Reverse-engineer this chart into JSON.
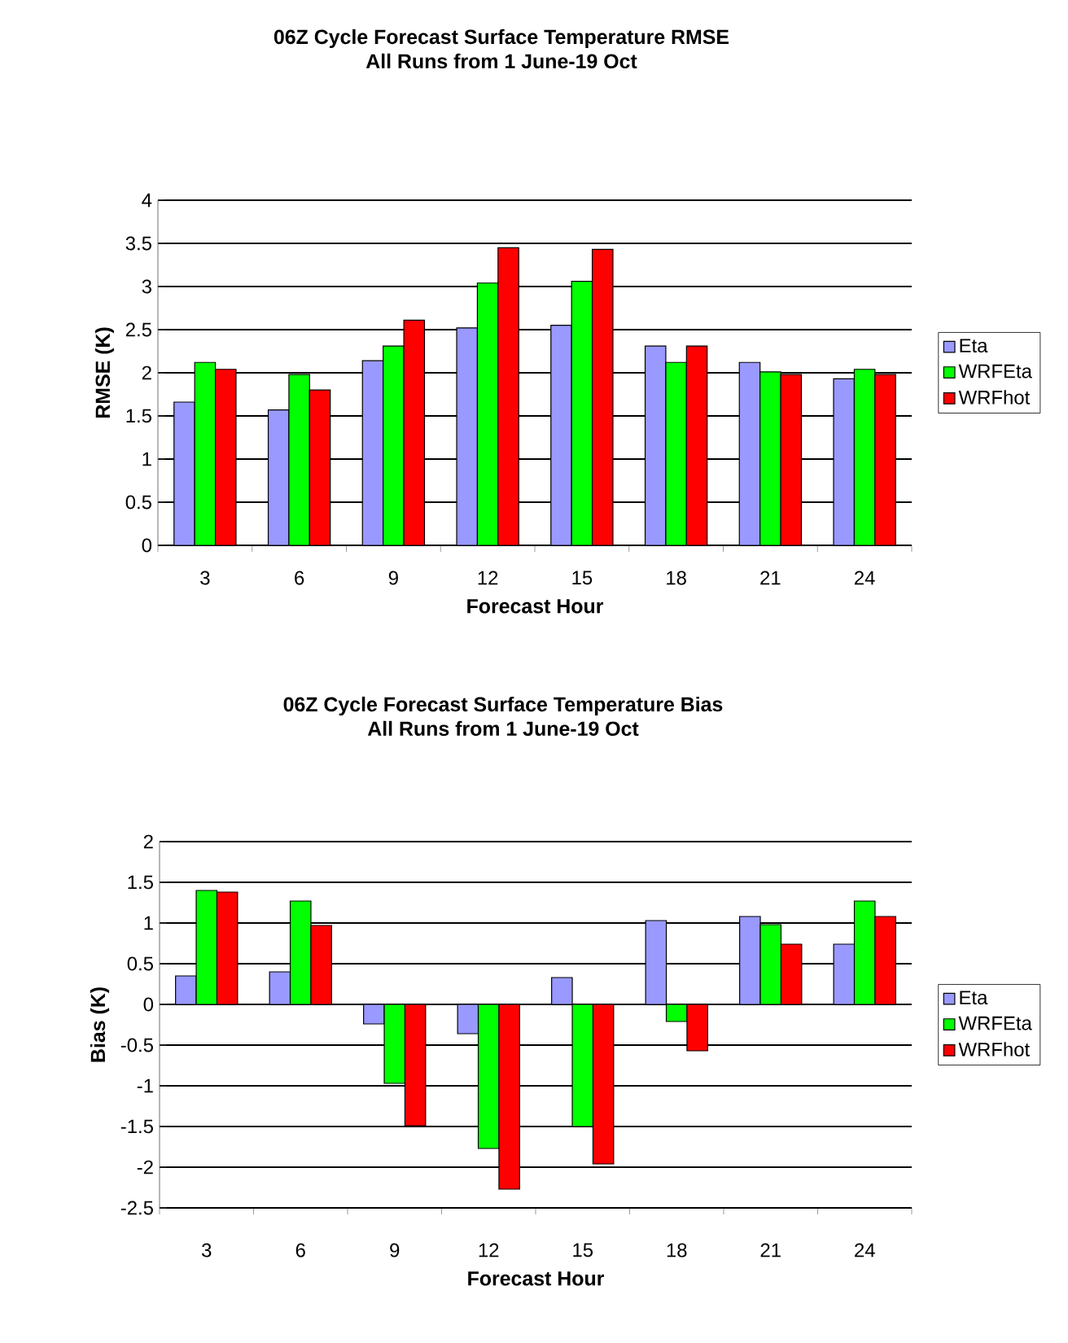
{
  "chart_data": [
    {
      "type": "bar",
      "title": "06Z Cycle Forecast Surface Temperature RMSE",
      "subtitle": "All Runs from 1 June-19 Oct",
      "xlabel": "Forecast Hour",
      "ylabel": "RMSE (K)",
      "categories": [
        "3",
        "6",
        "9",
        "12",
        "15",
        "18",
        "21",
        "24"
      ],
      "ylim": [
        0,
        4
      ],
      "yticks": [
        0,
        0.5,
        1,
        1.5,
        2,
        2.5,
        3,
        3.5,
        4
      ],
      "grid": "y",
      "legend": "right",
      "series": [
        {
          "name": "Eta",
          "color": "#9999ff",
          "values": [
            1.66,
            1.57,
            2.14,
            2.52,
            2.55,
            2.31,
            2.12,
            1.93
          ]
        },
        {
          "name": "WRFEta",
          "color": "#00ff00",
          "values": [
            2.12,
            1.98,
            2.31,
            3.04,
            3.06,
            2.12,
            2.01,
            2.04
          ]
        },
        {
          "name": "WRFhot",
          "color": "#ff0000",
          "values": [
            2.04,
            1.8,
            2.61,
            3.45,
            3.43,
            2.31,
            1.98,
            1.98
          ]
        }
      ]
    },
    {
      "type": "bar",
      "title": "06Z Cycle Forecast Surface Temperature Bias",
      "subtitle": "All Runs from 1 June-19 Oct",
      "xlabel": "Forecast Hour",
      "ylabel": "Bias (K)",
      "categories": [
        "3",
        "6",
        "9",
        "12",
        "15",
        "18",
        "21",
        "24"
      ],
      "ylim": [
        -2.5,
        2
      ],
      "yticks": [
        -2.5,
        -2,
        -1.5,
        -1,
        -0.5,
        0,
        0.5,
        1,
        1.5,
        2
      ],
      "grid": "y",
      "legend": "right",
      "series": [
        {
          "name": "Eta",
          "color": "#9999ff",
          "values": [
            0.35,
            0.4,
            -0.24,
            -0.36,
            0.33,
            1.03,
            1.08,
            0.74
          ]
        },
        {
          "name": "WRFEta",
          "color": "#00ff00",
          "values": [
            1.4,
            1.27,
            -0.97,
            -1.77,
            -1.5,
            -0.21,
            0.98,
            1.27
          ]
        },
        {
          "name": "WRFhot",
          "color": "#ff0000",
          "values": [
            1.38,
            0.97,
            -1.49,
            -2.27,
            -1.96,
            -0.57,
            0.74,
            1.08
          ]
        }
      ]
    }
  ]
}
